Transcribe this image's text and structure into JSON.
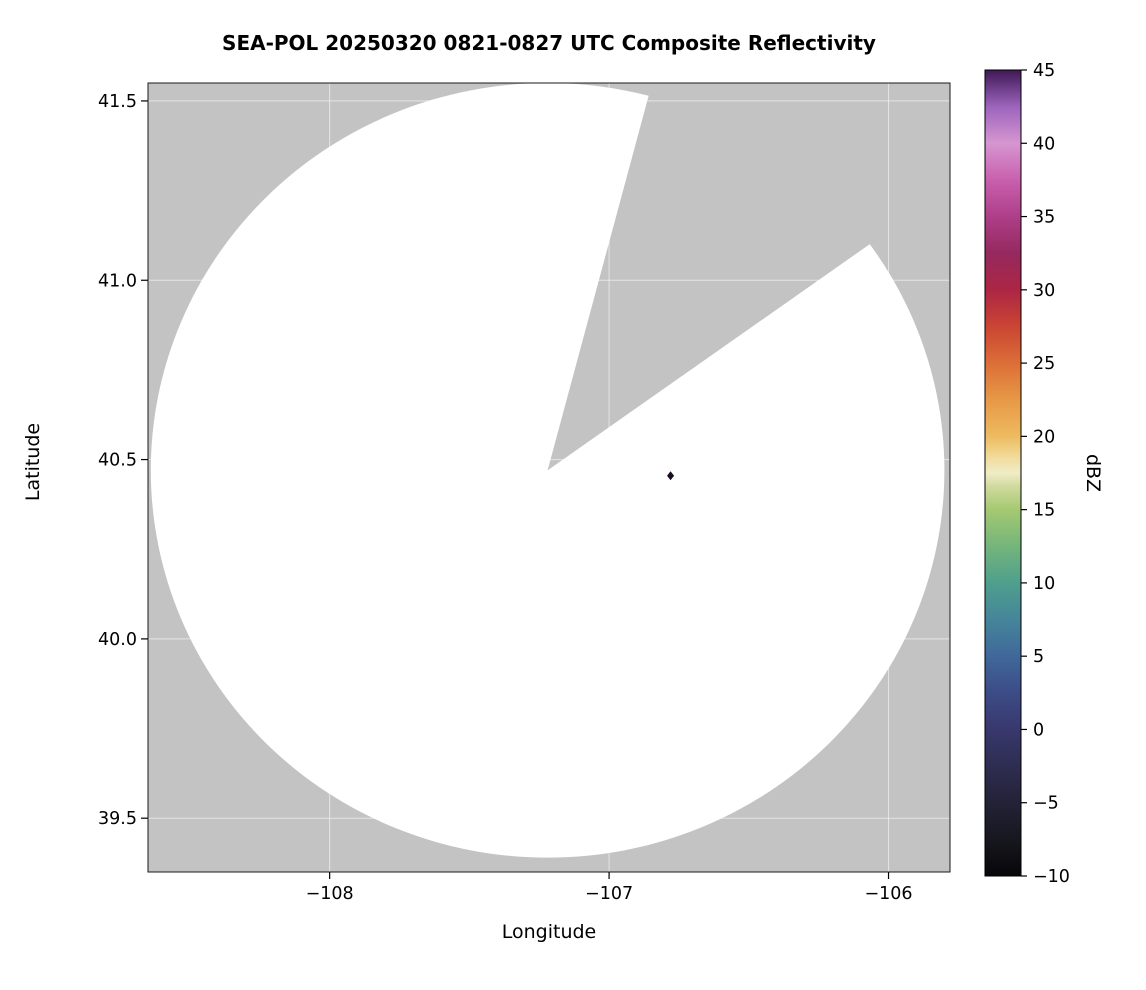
{
  "chart_data": {
    "type": "heatmap",
    "subtype": "radar-composite-reflectivity",
    "title": "SEA-POL 20250320 0821-0827 UTC Composite Reflectivity",
    "xlabel": "Longitude",
    "ylabel": "Latitude",
    "xlim": [
      -108.65,
      -105.78
    ],
    "ylim": [
      39.35,
      41.55
    ],
    "grid": true,
    "grid_color": "#ffffff",
    "x_ticks": [
      {
        "v": -108,
        "label": "−108"
      },
      {
        "v": -107,
        "label": "−107"
      },
      {
        "v": -106,
        "label": "−106"
      }
    ],
    "y_ticks": [
      {
        "v": 39.5,
        "label": "39.5"
      },
      {
        "v": 40.0,
        "label": "40.0"
      },
      {
        "v": 40.5,
        "label": "40.5"
      },
      {
        "v": 41.0,
        "label": "41.0"
      },
      {
        "v": 41.5,
        "label": "41.5"
      }
    ],
    "radar": {
      "name": "SEA-POL",
      "center_lon": -107.22,
      "center_lat": 40.47,
      "radius_lon_deg": 1.42,
      "radius_lat_deg": 1.08,
      "coverage_fill": "#ffffff",
      "no_data_fill": "#c3c3c3",
      "blocked_sector": {
        "edge1": {
          "lon": -106.86,
          "lat": 41.51
        },
        "edge2": {
          "lon": -106.05,
          "lat": 41.11
        }
      }
    },
    "echoes": [
      {
        "lon": -106.78,
        "lat": 40.455,
        "dbz": 45,
        "color": "#180b22"
      }
    ],
    "colorbar": {
      "label": "dBZ",
      "min": -10,
      "max": 45,
      "ticks": [
        {
          "v": -10,
          "label": "−10"
        },
        {
          "v": -5,
          "label": "−5"
        },
        {
          "v": 0,
          "label": "0"
        },
        {
          "v": 5,
          "label": "5"
        },
        {
          "v": 10,
          "label": "10"
        },
        {
          "v": 15,
          "label": "15"
        },
        {
          "v": 20,
          "label": "20"
        },
        {
          "v": 25,
          "label": "25"
        },
        {
          "v": 30,
          "label": "30"
        },
        {
          "v": 35,
          "label": "35"
        },
        {
          "v": 40,
          "label": "40"
        },
        {
          "v": 45,
          "label": "45"
        }
      ],
      "stops": [
        {
          "v": -10,
          "c": "#070709"
        },
        {
          "v": -7.5,
          "c": "#17171f"
        },
        {
          "v": -5,
          "c": "#232237"
        },
        {
          "v": -2.5,
          "c": "#2e2d51"
        },
        {
          "v": 0,
          "c": "#38386d"
        },
        {
          "v": 2.5,
          "c": "#3c4c86"
        },
        {
          "v": 5,
          "c": "#40689a"
        },
        {
          "v": 7.5,
          "c": "#45859a"
        },
        {
          "v": 10,
          "c": "#4f9f8d"
        },
        {
          "v": 12.5,
          "c": "#74b57b"
        },
        {
          "v": 15,
          "c": "#a5c972"
        },
        {
          "v": 16.5,
          "c": "#cdd99b"
        },
        {
          "v": 17.5,
          "c": "#f0ecc6"
        },
        {
          "v": 18.5,
          "c": "#f1dd9e"
        },
        {
          "v": 20,
          "c": "#eebb60"
        },
        {
          "v": 22.5,
          "c": "#e79846"
        },
        {
          "v": 25,
          "c": "#dc6e38"
        },
        {
          "v": 27.5,
          "c": "#ca4533"
        },
        {
          "v": 30,
          "c": "#ac2644"
        },
        {
          "v": 32.5,
          "c": "#95295e"
        },
        {
          "v": 35,
          "c": "#ae3f89"
        },
        {
          "v": 37.5,
          "c": "#c960ae"
        },
        {
          "v": 40,
          "c": "#d696d0"
        },
        {
          "v": 42.5,
          "c": "#9c64bd"
        },
        {
          "v": 45,
          "c": "#401955"
        }
      ]
    }
  }
}
